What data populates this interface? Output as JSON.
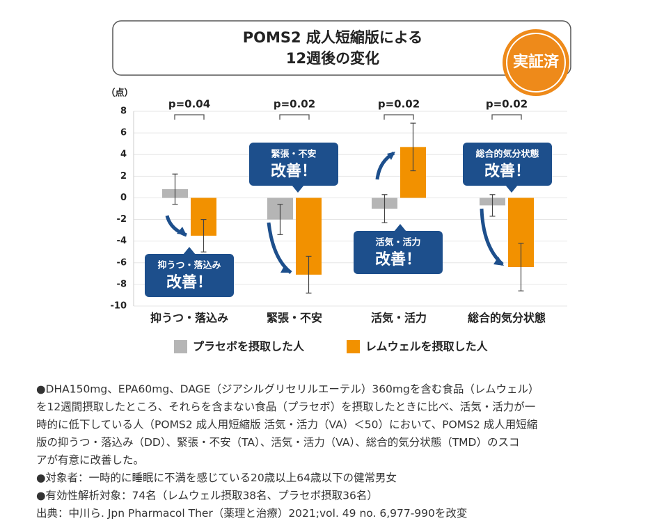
{
  "chart_data": {
    "type": "bar",
    "title_lines": [
      "POMS2 成人短縮版による",
      "12週後の変化"
    ],
    "badge": "実証済",
    "y_label": "（点）",
    "categories": [
      "抑うつ・落込み",
      "緊張・不安",
      "活気・活力",
      "総合的気分状態"
    ],
    "p_values": [
      "p=0.04",
      "p=0.02",
      "p=0.02",
      "p=0.02"
    ],
    "series": [
      {
        "name": "プラセボを摂取した人",
        "color": "#b5b5b5",
        "values": [
          0.8,
          -2.0,
          -1.0,
          -0.7
        ],
        "errors": [
          1.4,
          1.4,
          1.3,
          1.0
        ]
      },
      {
        "name": "レムウェルを摂取した人",
        "color": "#f29100",
        "values": [
          -3.5,
          -7.1,
          4.7,
          -6.4
        ],
        "errors": [
          1.5,
          1.7,
          2.2,
          2.2
        ]
      }
    ],
    "ylim": [
      -10,
      8
    ],
    "yticks": [
      8,
      6,
      4,
      2,
      0,
      -2,
      -4,
      -6,
      -8,
      -10
    ],
    "grid": true,
    "annotations": [
      {
        "lines": [
          "抑うつ・落込み",
          "改善！"
        ]
      },
      {
        "lines": [
          "緊張・不安",
          "改善！"
        ]
      },
      {
        "lines": [
          "活気・活力",
          "改善！"
        ]
      },
      {
        "lines": [
          "総合的気分状態",
          "改善！"
        ]
      }
    ]
  },
  "notes": [
    "●DHA150mg、EPA60mg、DAGE（ジアシルグリセリルエーテル）360mgを含む食品（レムウェル）",
    "を12週間摂取したところ、それらを含まない食品（プラセボ）を摂取したときに比べ、活気・活力が一",
    "時的に低下している人（POMS2 成人用短縮版 活気・活力（VA）＜50）において、POMS2 成人用短縮",
    "版の抑うつ・落込み（DD）、緊張・不安（TA）、活気・活力（VA）、総合的気分状態（TMD）のスコ",
    "アが有意に改善した。",
    "●対象者：一時的に睡眠に不満を感じている20歳以上64歳以下の健常男女",
    "●有効性解析対象：74名（レムウェル摂取38名、プラセボ摂取36名）",
    "出典：中川ら. Jpn Pharmacol Ther（薬理と治療）2021;vol. 49 no. 6,977-990を改変"
  ]
}
